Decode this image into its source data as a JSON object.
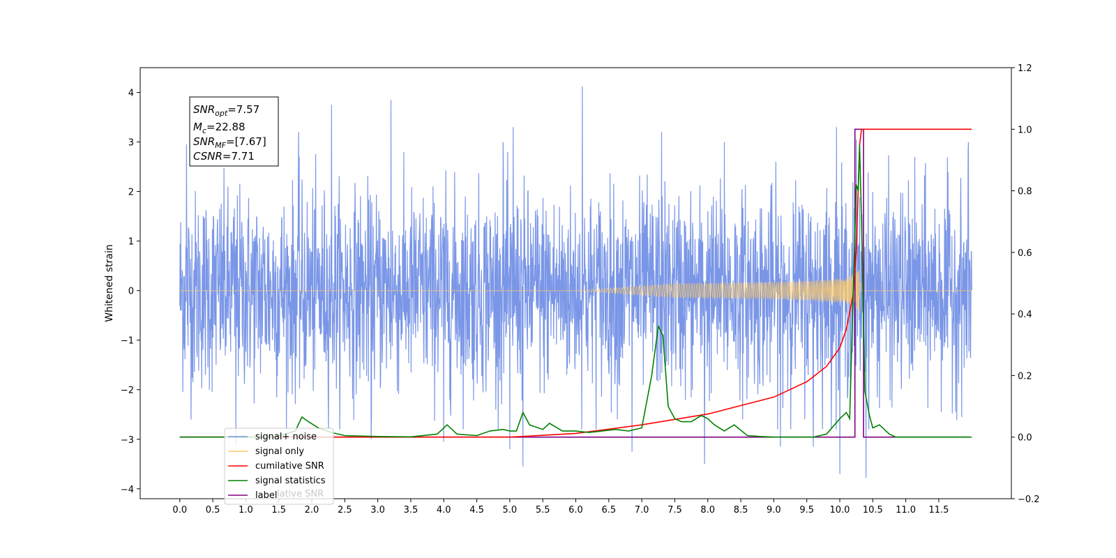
{
  "chart_data": {
    "type": "line",
    "title": "",
    "xlabel": "",
    "ylabel": "Whitened strain",
    "xlim": [
      -0.6,
      12.6
    ],
    "ylim": [
      -4.2,
      4.5
    ],
    "y2lim": [
      -0.2,
      1.2
    ],
    "x_ticks": [
      "0.0",
      "0.5",
      "1.0",
      "1.5",
      "2.0",
      "2.5",
      "3.0",
      "3.5",
      "4.0",
      "4.5",
      "5.0",
      "5.5",
      "6.0",
      "6.5",
      "7.0",
      "7.5",
      "8.0",
      "8.5",
      "9.0",
      "9.5",
      "10.0",
      "10.5",
      "11.0",
      "11.5"
    ],
    "y_ticks": [
      "4",
      "3",
      "2",
      "1",
      "0",
      "−1",
      "−2",
      "−3",
      "−4"
    ],
    "y2_ticks": [
      "1.2",
      "1.0",
      "0.8",
      "0.6",
      "0.4",
      "0.2",
      "0.0",
      "−0.2"
    ],
    "grid": false,
    "annotation": {
      "snr_opt_name": "SNR",
      "snr_opt_sub": "opt",
      "snr_opt_value": "=7.57",
      "mc_name": "M",
      "mc_sub": "c",
      "mc_value": "=22.88",
      "snr_mf_name": "SNR",
      "snr_mf_sub": "MF",
      "snr_mf_value": "=[7.67]",
      "csnr_name": "CSNR",
      "csnr_value": "=7.71"
    },
    "legend": {
      "placement": "lower-left",
      "entries": [
        {
          "label": "signal+ noise",
          "color": "#7390e6"
        },
        {
          "label": "signal only",
          "color": "#ffc966"
        },
        {
          "label": "cumilative SNR",
          "color": "#ff0000"
        },
        {
          "label": "signal statistics",
          "color": "#008000"
        },
        {
          "label": "label",
          "color": "#800080"
        }
      ],
      "overlap_text": "lative SNR"
    },
    "series": [
      {
        "name": "signal+ noise",
        "axis": "left",
        "color": "#7390e6",
        "x_range": [
          0.0,
          12.0
        ],
        "amplitude_envelope": 1.6,
        "spikes": [
          {
            "x": 0.1,
            "y": 2.95
          },
          {
            "x": 0.85,
            "y": -3.1
          },
          {
            "x": 1.8,
            "y": 3.2
          },
          {
            "x": 2.3,
            "y": 3.75
          },
          {
            "x": 2.9,
            "y": -3.0
          },
          {
            "x": 3.2,
            "y": 3.85
          },
          {
            "x": 4.0,
            "y": -3.05
          },
          {
            "x": 4.9,
            "y": 3.0
          },
          {
            "x": 5.0,
            "y": -3.2
          },
          {
            "x": 5.2,
            "y": -3.55
          },
          {
            "x": 5.05,
            "y": 3.3
          },
          {
            "x": 6.1,
            "y": 4.12
          },
          {
            "x": 6.85,
            "y": -3.25
          },
          {
            "x": 7.3,
            "y": 3.2
          },
          {
            "x": 7.95,
            "y": -3.5
          },
          {
            "x": 8.25,
            "y": 3.0
          },
          {
            "x": 9.1,
            "y": -3.15
          },
          {
            "x": 9.6,
            "y": -3.15
          },
          {
            "x": 9.95,
            "y": 3.3
          },
          {
            "x": 10.0,
            "y": -3.7
          },
          {
            "x": 10.25,
            "y": 3.05
          },
          {
            "x": 10.4,
            "y": -3.78
          },
          {
            "x": 11.95,
            "y": 3.0
          }
        ]
      },
      {
        "name": "signal only",
        "axis": "left",
        "color": "#ffc966",
        "x_range": [
          0.0,
          12.0
        ],
        "chirp_start": 6.0,
        "chirp_end": 10.32,
        "chirp_peak_amplitude": 0.7
      },
      {
        "name": "cumilative SNR",
        "axis": "right",
        "color": "#ff0000",
        "x": [
          0.0,
          5.0,
          6.0,
          7.0,
          8.0,
          9.0,
          9.5,
          9.8,
          10.0,
          10.1,
          10.2,
          10.25,
          10.3,
          10.33,
          11.0,
          12.0
        ],
        "y": [
          0.0,
          0.0,
          0.012,
          0.04,
          0.075,
          0.13,
          0.18,
          0.23,
          0.29,
          0.35,
          0.46,
          0.6,
          0.95,
          1.0,
          1.0,
          1.0
        ]
      },
      {
        "name": "signal statistics",
        "axis": "right",
        "color": "#008000",
        "x": [
          0.0,
          1.4,
          1.6,
          1.75,
          1.85,
          1.95,
          2.1,
          2.3,
          2.5,
          3.0,
          3.5,
          3.9,
          4.05,
          4.2,
          4.5,
          4.7,
          4.9,
          5.0,
          5.1,
          5.2,
          5.3,
          5.5,
          5.6,
          5.8,
          6.0,
          6.2,
          6.4,
          6.6,
          6.8,
          7.0,
          7.15,
          7.25,
          7.32,
          7.4,
          7.5,
          7.6,
          7.75,
          7.9,
          8.0,
          8.1,
          8.25,
          8.4,
          8.6,
          8.8,
          9.0,
          9.6,
          9.8,
          10.0,
          10.1,
          10.15,
          10.25,
          10.28,
          10.3,
          10.33,
          10.38,
          10.45,
          10.5,
          10.6,
          10.75,
          10.85,
          12.0
        ],
        "y": [
          0.0,
          0.0,
          0.01,
          0.02,
          0.065,
          0.05,
          0.03,
          0.015,
          0.005,
          0.002,
          0.001,
          0.01,
          0.04,
          0.01,
          0.005,
          0.02,
          0.025,
          0.02,
          0.02,
          0.08,
          0.04,
          0.025,
          0.045,
          0.02,
          0.02,
          0.015,
          0.02,
          0.025,
          0.02,
          0.03,
          0.2,
          0.36,
          0.33,
          0.1,
          0.06,
          0.05,
          0.05,
          0.07,
          0.06,
          0.04,
          0.02,
          0.04,
          0.005,
          0.002,
          0.0,
          0.0,
          0.01,
          0.06,
          0.08,
          0.06,
          0.82,
          0.8,
          0.95,
          0.7,
          0.15,
          0.07,
          0.03,
          0.04,
          0.01,
          0.0,
          0.0
        ]
      },
      {
        "name": "label",
        "axis": "right",
        "color": "#800080",
        "x": [
          0.0,
          10.23,
          10.23,
          10.36,
          10.36,
          11.95
        ],
        "y": [
          0.0,
          0.0,
          1.0,
          1.0,
          0.0,
          0.0
        ]
      }
    ]
  }
}
